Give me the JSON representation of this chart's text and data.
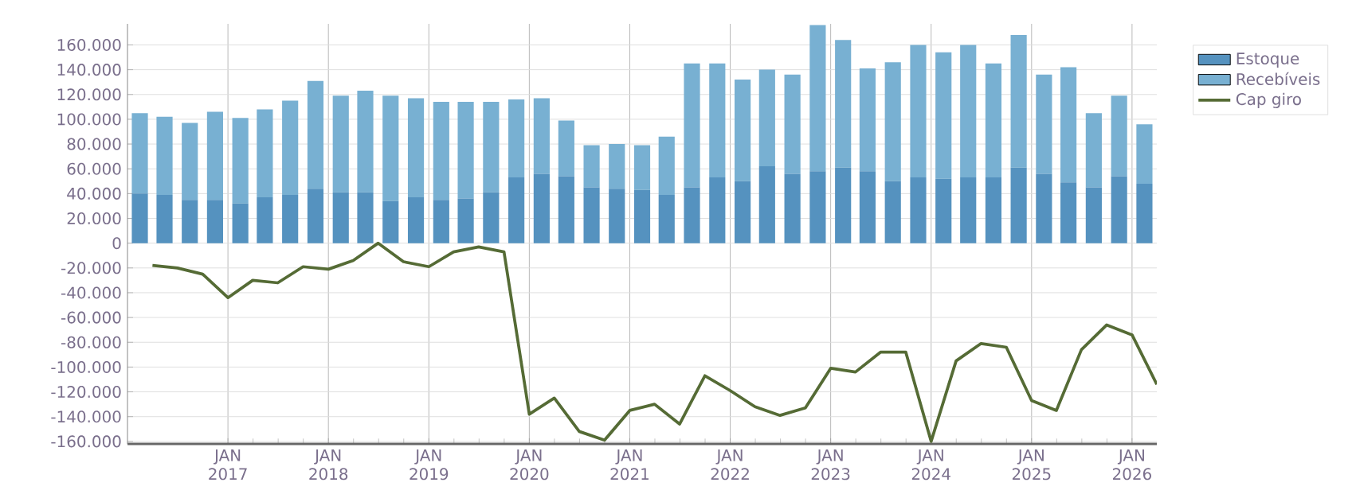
{
  "chart_data": {
    "type": "bar",
    "stacked": true,
    "x": [
      "2016-02-15",
      "2016-05-15",
      "2016-08-15",
      "2016-11-15",
      "2017-02-15",
      "2017-05-15",
      "2017-08-15",
      "2017-11-15",
      "2018-02-15",
      "2018-05-15",
      "2018-08-15",
      "2018-11-15",
      "2019-02-15",
      "2019-05-15",
      "2019-08-15",
      "2019-11-15",
      "2020-02-15",
      "2020-05-15",
      "2020-08-15",
      "2020-11-15",
      "2021-02-15",
      "2021-05-15",
      "2021-08-15",
      "2021-11-15",
      "2022-02-15",
      "2022-05-15",
      "2022-08-15",
      "2022-11-15",
      "2023-02-15",
      "2023-05-15",
      "2023-08-15",
      "2023-11-15",
      "2024-02-15",
      "2024-05-15",
      "2024-08-15",
      "2024-11-15",
      "2025-02-15",
      "2025-05-15",
      "2025-08-15",
      "2025-11-15",
      "2026-02-15"
    ],
    "series": [
      {
        "name": "Estoque",
        "color": "#5592bf",
        "values": [
          40000,
          39000,
          35000,
          35000,
          32000,
          37000,
          39000,
          44000,
          41000,
          41000,
          34000,
          37000,
          35000,
          36000,
          41000,
          53000,
          56000,
          54000,
          45000,
          44000,
          43000,
          39000,
          45000,
          53000,
          50000,
          62000,
          56000,
          58000,
          61000,
          58000,
          50000,
          53000,
          52000,
          53000,
          53000,
          61000,
          56000,
          49000,
          45000,
          54000,
          48000
        ]
      },
      {
        "name": "Recebíveis",
        "color": "#78b0d2",
        "values": [
          65000,
          63000,
          62000,
          71000,
          69000,
          71000,
          76000,
          87000,
          78000,
          82000,
          85000,
          80000,
          79000,
          78000,
          73000,
          63000,
          61000,
          45000,
          34000,
          36000,
          36000,
          47000,
          100000,
          92000,
          82000,
          78000,
          80000,
          118000,
          103000,
          83000,
          96000,
          107000,
          102000,
          107000,
          92000,
          107000,
          80000,
          93000,
          60000,
          65000,
          48000
        ]
      },
      {
        "name": "Cap giro",
        "type": "line",
        "color": "#556b35",
        "x": [
          "2016-04",
          "2016-07",
          "2016-10",
          "2017-01",
          "2017-04",
          "2017-07",
          "2017-10",
          "2018-01",
          "2018-04",
          "2018-07",
          "2018-10",
          "2019-01",
          "2019-04",
          "2019-07",
          "2019-10",
          "2020-01",
          "2020-04",
          "2020-07",
          "2020-10",
          "2021-01",
          "2021-04",
          "2021-07",
          "2021-10",
          "2022-01",
          "2022-04",
          "2022-07",
          "2022-10",
          "2023-01",
          "2023-04",
          "2023-07",
          "2023-10",
          "2024-01",
          "2024-04",
          "2024-07",
          "2024-10",
          "2025-01",
          "2025-04",
          "2025-07",
          "2025-10",
          "2026-01",
          "2026-04"
        ],
        "values": [
          -18000,
          -20000,
          -25000,
          -44000,
          -30000,
          -32000,
          -19000,
          -21000,
          -14000,
          0,
          -15000,
          -19000,
          -7000,
          -3000,
          -7000,
          -138000,
          -125000,
          -152000,
          -159000,
          -135000,
          -130000,
          -146000,
          -107000,
          -119000,
          -132000,
          -139000,
          -133000,
          -101000,
          -104000,
          -88000,
          -88000,
          -160000,
          -95000,
          -81000,
          -84000,
          -127000,
          -135000,
          -86000,
          -66000,
          -74000,
          -114000
        ]
      }
    ],
    "xlim": [
      "2016-01-01",
      "2026-04-01"
    ],
    "xticks": [
      {
        "value": "2017-01",
        "label": "JAN 2017"
      },
      {
        "value": "2018-01",
        "label": "JAN 2018"
      },
      {
        "value": "2019-01",
        "label": "JAN 2019"
      },
      {
        "value": "2020-01",
        "label": "JAN 2020"
      },
      {
        "value": "2021-01",
        "label": "JAN 2021"
      },
      {
        "value": "2022-01",
        "label": "JAN 2022"
      },
      {
        "value": "2023-01",
        "label": "JAN 2023"
      },
      {
        "value": "2024-01",
        "label": "JAN 2024"
      },
      {
        "value": "2025-01",
        "label": "JAN 2025"
      },
      {
        "value": "2026-01",
        "label": "JAN 2026"
      }
    ],
    "ylim": [
      -162000,
      177000
    ],
    "yticks": [
      {
        "value": -160000,
        "label": "-160.000"
      },
      {
        "value": -140000,
        "label": "-140.000"
      },
      {
        "value": -120000,
        "label": "-120.000"
      },
      {
        "value": -100000,
        "label": "-100.000"
      },
      {
        "value": -80000,
        "label": "-80.000"
      },
      {
        "value": -60000,
        "label": "-60.000"
      },
      {
        "value": -40000,
        "label": "-40.000"
      },
      {
        "value": -20000,
        "label": "-20.000"
      },
      0,
      {
        "value": 20000,
        "label": "20.000"
      },
      {
        "value": 40000,
        "label": "40.000"
      },
      {
        "value": 60000,
        "label": "60.000"
      },
      {
        "value": 80000,
        "label": "80.000"
      },
      {
        "value": 100000,
        "label": "100.000"
      },
      {
        "value": 120000,
        "label": "120.000"
      },
      {
        "value": 140000,
        "label": "140.000"
      },
      {
        "value": 160000,
        "label": "160.000"
      }
    ],
    "grid": true,
    "legend": "right",
    "marker": "none",
    "line_style": "solid"
  }
}
